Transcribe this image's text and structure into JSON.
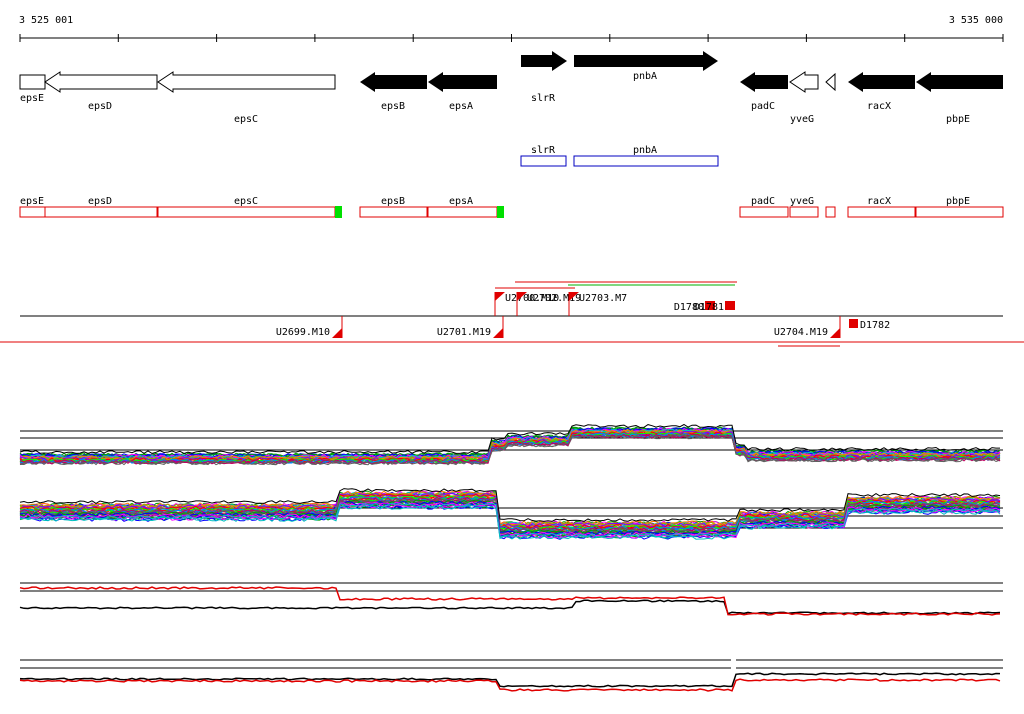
{
  "coordinates": {
    "start": "3 525 001",
    "end": "3 535 000"
  },
  "annotated_genes": [
    {
      "name": "epsE",
      "strand": "-",
      "style": "outline"
    },
    {
      "name": "epsD",
      "strand": "-",
      "style": "outline"
    },
    {
      "name": "epsC",
      "strand": "-",
      "style": "outline"
    },
    {
      "name": "epsB",
      "strand": "-",
      "style": "filled"
    },
    {
      "name": "epsA",
      "strand": "-",
      "style": "filled"
    },
    {
      "name": "slrR",
      "strand": "+",
      "style": "filled"
    },
    {
      "name": "pnbA",
      "strand": "+",
      "style": "filled"
    },
    {
      "name": "padC",
      "strand": "-",
      "style": "filled"
    },
    {
      "name": "yveG",
      "strand": "-",
      "style": "outline"
    },
    {
      "name": "",
      "strand": "-",
      "style": "outline"
    },
    {
      "name": "racX",
      "strand": "-",
      "style": "filled"
    },
    {
      "name": "pbpE",
      "strand": "-",
      "style": "filled"
    }
  ],
  "forward_track": [
    {
      "name": "slrR"
    },
    {
      "name": "pnbA"
    }
  ],
  "reverse_track": [
    {
      "name": "epsE",
      "marker": false
    },
    {
      "name": "epsD",
      "marker": false
    },
    {
      "name": "epsC",
      "marker": true
    },
    {
      "name": "epsB",
      "marker": false
    },
    {
      "name": "epsA",
      "marker": true
    },
    {
      "name": "padC",
      "marker": false
    },
    {
      "name": "yveG",
      "marker": false
    },
    {
      "name": "",
      "marker": false
    },
    {
      "name": "racX",
      "marker": false
    },
    {
      "name": "pbpE",
      "marker": false
    }
  ],
  "features_top": [
    {
      "label": "U2700.M10"
    },
    {
      "label": "U2702.M19"
    },
    {
      "label": "U2703.M7"
    },
    {
      "label": "D1780"
    },
    {
      "label": "D1781"
    }
  ],
  "features_bottom": [
    {
      "label": "U2699.M10"
    },
    {
      "label": "U2701.M19"
    },
    {
      "label": "U2704.M19"
    },
    {
      "label": "D1782"
    }
  ],
  "panels": [
    {
      "id": "forward-tiling-profiles",
      "colors": [
        "#00a000",
        "#0000ff",
        "#ff00ff",
        "#00c0c0",
        "#ff8000",
        "#a0a000",
        "#8000ff",
        "#ff0000",
        "#00ff00",
        "#0080ff",
        "#c00060",
        "#606060"
      ]
    },
    {
      "id": "reverse-tiling-profiles",
      "colors": [
        "#00a000",
        "#0000ff",
        "#ff00ff",
        "#00c0c0",
        "#ff8000",
        "#a0a000",
        "#8000ff",
        "#ff0000",
        "#00ff00",
        "#0080ff",
        "#c00060",
        "#606060"
      ]
    },
    {
      "id": "forward-summary-profile",
      "colors": [
        "#000000",
        "#ff0000"
      ]
    },
    {
      "id": "reverse-summary-profile",
      "colors": [
        "#000000",
        "#ff0000"
      ]
    }
  ]
}
